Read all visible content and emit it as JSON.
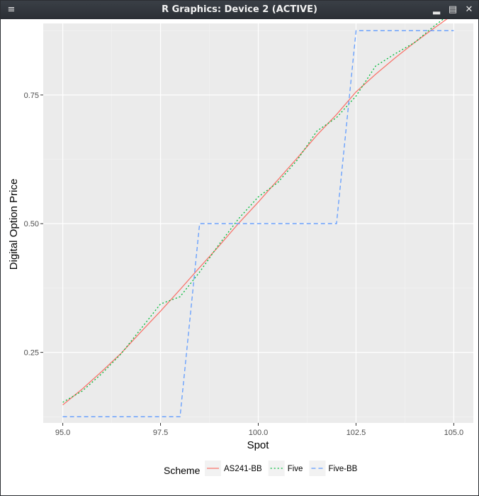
{
  "window": {
    "title": "R Graphics: Device 2 (ACTIVE)",
    "icons": {
      "menu": "hamburger-menu-icon",
      "minimize": "minimize-icon",
      "maximize": "maximize-icon",
      "close": "close-icon"
    }
  },
  "chart_data": {
    "type": "line",
    "title": "",
    "xlabel": "Spot",
    "ylabel": "Digital Option Price",
    "xlim": [
      94.5,
      105.5
    ],
    "ylim": [
      0.113,
      0.889
    ],
    "xticks": [
      95.0,
      97.5,
      100.0,
      102.5,
      105.0
    ],
    "xtick_labels": [
      "95.0",
      "97.5",
      "100.0",
      "102.5",
      "105.0"
    ],
    "yticks": [
      0.25,
      0.5,
      0.75
    ],
    "ytick_labels": [
      "0.25",
      "0.50",
      "0.75"
    ],
    "grid": true,
    "background": "#ebebeb",
    "legend": {
      "title": "Scheme",
      "placement": "bottom",
      "entries": [
        "AS241-BB",
        "Five",
        "Five-BB"
      ]
    },
    "series": [
      {
        "name": "AS241-BB",
        "color": "#f8766d",
        "linestyle": "solid",
        "x": [
          95.0,
          95.5,
          96.0,
          96.5,
          97.0,
          97.5,
          98.0,
          98.5,
          99.0,
          99.5,
          100.0,
          100.5,
          101.0,
          101.5,
          102.0,
          102.5,
          103.0,
          103.5,
          104.0,
          104.5,
          105.0
        ],
        "y": [
          0.148,
          0.179,
          0.213,
          0.249,
          0.29,
          0.33,
          0.372,
          0.415,
          0.457,
          0.501,
          0.542,
          0.585,
          0.628,
          0.672,
          0.712,
          0.756,
          0.79,
          0.822,
          0.852,
          0.88,
          0.907
        ]
      },
      {
        "name": "Five",
        "color": "#00ba38",
        "linestyle": "dotted",
        "x": [
          95.0,
          95.5,
          96.0,
          96.5,
          97.0,
          97.5,
          98.0,
          98.5,
          99.0,
          99.5,
          100.0,
          100.5,
          101.0,
          101.5,
          102.0,
          102.5,
          103.0,
          103.5,
          104.0,
          104.5,
          105.0
        ],
        "y": [
          0.153,
          0.175,
          0.209,
          0.248,
          0.296,
          0.344,
          0.358,
          0.406,
          0.46,
          0.51,
          0.552,
          0.58,
          0.624,
          0.68,
          0.706,
          0.748,
          0.806,
          0.83,
          0.852,
          0.884,
          0.913
        ]
      },
      {
        "name": "Five-BB",
        "color": "#619cff",
        "linestyle": "dashed",
        "x": [
          95.0,
          98.0,
          98.5,
          102.0,
          102.5,
          105.0
        ],
        "y": [
          0.125,
          0.125,
          0.5,
          0.5,
          0.875,
          0.875
        ]
      }
    ]
  }
}
